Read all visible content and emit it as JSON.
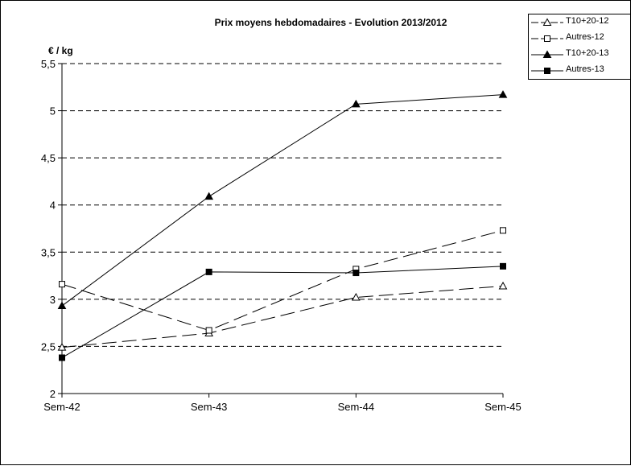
{
  "chart_data": {
    "type": "line",
    "title": "Prix moyens hebdomadaires - Evolution  2013/2012",
    "ylabel": "€ / kg",
    "xlabel": "",
    "categories": [
      "Sem-42",
      "Sem-43",
      "Sem-44",
      "Sem-45"
    ],
    "ylim": [
      2,
      5.5
    ],
    "yticks": [
      "2",
      "2,5",
      "3",
      "3,5",
      "4",
      "4,5",
      "5",
      "5,5"
    ],
    "ytick_values": [
      2,
      2.5,
      3,
      3.5,
      4,
      4.5,
      5,
      5.5
    ],
    "grid": "horizontal dashed",
    "legend_position": "top-right",
    "series": [
      {
        "name": "T10+20-12",
        "values": [
          2.49,
          2.64,
          3.02,
          3.14
        ],
        "marker": "triangle-open",
        "dashed": true
      },
      {
        "name": "Autres-12",
        "values": [
          3.16,
          2.67,
          3.32,
          3.73
        ],
        "marker": "square-open",
        "dashed": true
      },
      {
        "name": "T10+20-13",
        "values": [
          2.93,
          4.09,
          5.07,
          5.17
        ],
        "marker": "triangle-filled",
        "dashed": false
      },
      {
        "name": "Autres-13",
        "values": [
          2.38,
          3.29,
          3.28,
          3.35
        ],
        "marker": "square-filled",
        "dashed": false
      }
    ]
  }
}
